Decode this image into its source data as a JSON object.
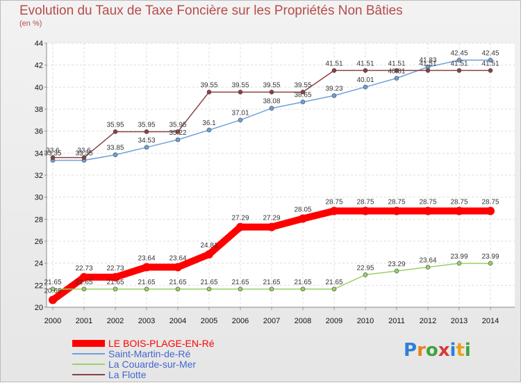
{
  "header": {
    "title": "Evolution du Taux de Taxe Foncière sur les Propriétés Non Bâties",
    "subtitle": "(en %)"
  },
  "logo": {
    "text": "Proxiti",
    "letters": [
      "P",
      "r",
      "o",
      "x",
      "i",
      "t",
      "i"
    ],
    "colors": [
      "#2f7fd6",
      "#e8821e",
      "#3fa33f",
      "#d63a3a",
      "#2f7fd6",
      "#e8a21e",
      "#3fa33f"
    ]
  },
  "chart_data": {
    "type": "line",
    "title": "Evolution du Taux de Taxe Foncière sur les Propriétés Non Bâties",
    "ylabel": "(en %)",
    "xlabel": "",
    "ylim": [
      20,
      44
    ],
    "yticks": [
      "20",
      "22",
      "24",
      "26",
      "28",
      "30",
      "32",
      "34",
      "36",
      "38",
      "40",
      "42",
      "44"
    ],
    "x": [
      "2000",
      "2001",
      "2002",
      "2003",
      "2004",
      "2005",
      "2006",
      "2007",
      "2008",
      "2009",
      "2010",
      "2011",
      "2012",
      "2013",
      "2014"
    ],
    "grid": true,
    "legend_position": "bottom-left",
    "series": [
      {
        "name": "LE BOIS-PLAGE-EN-Ré",
        "color": "#ff0000",
        "legend_text_color": "#ff0000",
        "emphasis": "thick",
        "values": [
          20.66,
          22.73,
          22.73,
          23.64,
          23.64,
          24.81,
          27.29,
          27.29,
          28.05,
          28.75,
          28.75,
          28.75,
          28.75,
          28.75,
          28.75
        ],
        "labels": [
          "20.66",
          "22.73",
          "22.73",
          "23.64",
          "23.64",
          "24.81",
          "27.29",
          "27.29",
          "28.05",
          "28.75",
          "28.75",
          "28.75",
          "28.75",
          "28.75",
          "28.75"
        ]
      },
      {
        "name": "Saint-Martin-de-Ré",
        "color": "#6f9fd8",
        "legend_text_color": "#4466cc",
        "emphasis": "normal",
        "values": [
          33.35,
          33.35,
          33.85,
          34.53,
          35.22,
          36.1,
          37.01,
          38.08,
          38.65,
          39.23,
          40.01,
          40.81,
          41.83,
          42.45,
          42.45
        ],
        "labels": [
          "33.35",
          "33.35",
          "33.85",
          "34.53",
          "35.22",
          "36.1",
          "37.01",
          "38.08",
          "38.65",
          "39.23",
          "40.01",
          "40.81",
          "41.83",
          "42.45",
          "42.45"
        ]
      },
      {
        "name": "La Couarde-sur-Mer",
        "color": "#99d066",
        "legend_text_color": "#4466cc",
        "emphasis": "normal",
        "values": [
          21.65,
          21.65,
          21.65,
          21.65,
          21.65,
          21.65,
          21.65,
          21.65,
          21.65,
          21.65,
          22.95,
          23.29,
          23.64,
          23.99,
          23.99
        ],
        "labels": [
          "21.65",
          "21.65",
          "21.65",
          "21.65",
          "21.65",
          "21.65",
          "21.65",
          "21.65",
          "21.65",
          "21.65",
          "22.95",
          "23.29",
          "23.64",
          "23.99",
          "23.99"
        ]
      },
      {
        "name": "La Flotte",
        "color": "#8b4040",
        "legend_text_color": "#4466cc",
        "emphasis": "normal",
        "values": [
          33.6,
          33.6,
          35.95,
          35.95,
          35.95,
          39.55,
          39.55,
          39.55,
          39.55,
          41.51,
          41.51,
          41.51,
          41.51,
          41.51,
          41.51
        ],
        "labels": [
          "33.6",
          "33.6",
          "35.95",
          "35.95",
          "35.95",
          "39.55",
          "39.55",
          "39.55",
          "39.55",
          "41.51",
          "41.51",
          "41.51",
          "41.51",
          "41.51",
          "41.51"
        ]
      }
    ]
  }
}
